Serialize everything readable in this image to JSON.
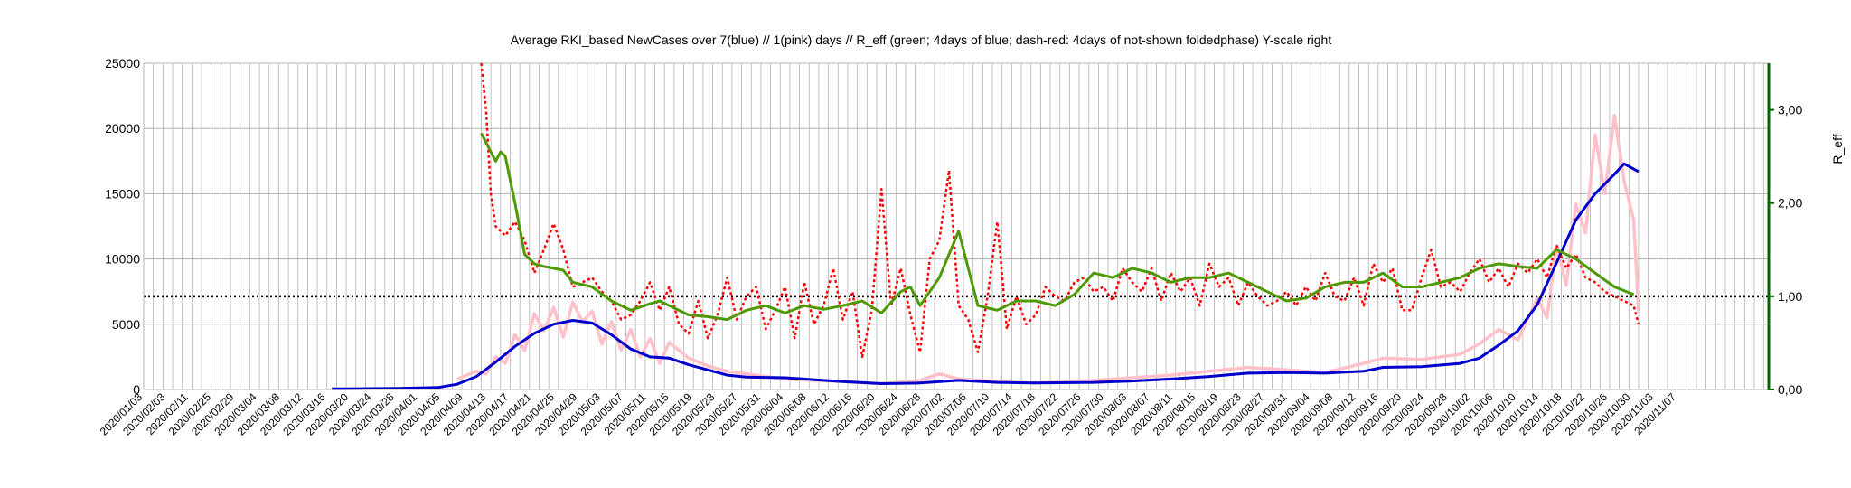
{
  "chart_data": {
    "type": "line",
    "title": "Average RKI_based NewCases over 7(blue) // 1(pink) days //  R_eff (green; 4days of blue; dash-red: 4days of not-shown foldedphase) Y-scale right",
    "xlabel": "",
    "ylabel": "",
    "y2label": "R_eff",
    "x_start": "2020/01/03",
    "x_end": "2020/12/05",
    "ylim": [
      0,
      25000
    ],
    "y2lim": [
      0,
      3.5
    ],
    "yticks": [
      "0",
      "5000",
      "10000",
      "15000",
      "20000",
      "25000"
    ],
    "y2ticks": [
      "0,00",
      "1,00",
      "2,00",
      "3,00"
    ],
    "y2tick_values": [
      0,
      1,
      2,
      3
    ],
    "xtick_labels": [
      "2020/01/03",
      "2020/02/03",
      "2020/02/11",
      "2020/02/25",
      "2020/02/29",
      "2020/03/04",
      "2020/03/08",
      "2020/03/12",
      "2020/03/16",
      "2020/03/20",
      "2020/03/24",
      "2020/03/28",
      "2020/04/01",
      "2020/04/05",
      "2020/04/09",
      "2020/04/13",
      "2020/04/17",
      "2020/04/21",
      "2020/04/25",
      "2020/04/29",
      "2020/05/03",
      "2020/05/07",
      "2020/05/11",
      "2020/05/15",
      "2020/05/19",
      "2020/05/23",
      "2020/05/27",
      "2020/05/31",
      "2020/06/04",
      "2020/06/08",
      "2020/06/12",
      "2020/06/16",
      "2020/06/20",
      "2020/06/24",
      "2020/06/28",
      "2020/07/02",
      "2020/07/06",
      "2020/07/10",
      "2020/07/14",
      "2020/07/18",
      "2020/07/22",
      "2020/07/26",
      "2020/07/30",
      "2020/08/03",
      "2020/08/07",
      "2020/08/11",
      "2020/08/15",
      "2020/08/19",
      "2020/08/23",
      "2020/08/27",
      "2020/08/31",
      "2020/09/04",
      "2020/09/08",
      "2020/09/12",
      "2020/09/16",
      "2020/09/20",
      "2020/09/24",
      "2020/09/28",
      "2020/10/02",
      "2020/10/06",
      "2020/10/10",
      "2020/10/14",
      "2020/10/18",
      "2020/10/22",
      "2020/10/26",
      "2020/10/30",
      "2020/11/03",
      "2020/11/07"
    ],
    "reference_line": {
      "axis": "y2",
      "value": 1.0,
      "style": "dotted",
      "color": "#000000"
    },
    "grid": true,
    "colors": {
      "avg7": "#0000cc",
      "daily": "#ffc0c8",
      "r_eff": "#4e9a06",
      "r_folded": "#ff0000",
      "y2axis": "#006600",
      "grid": "#b3b3b3"
    },
    "series": [
      {
        "axis": "y",
        "x": [
          "2020/02/11",
          "2020/02/25",
          "2020/03/04",
          "2020/03/08",
          "2020/03/12",
          "2020/03/16",
          "2020/03/20",
          "2020/03/24",
          "2020/03/28",
          "2020/04/01",
          "2020/04/05",
          "2020/04/09",
          "2020/04/13",
          "2020/04/17",
          "2020/04/21",
          "2020/04/25",
          "2020/04/29",
          "2020/05/03",
          "2020/05/07",
          "2020/05/15",
          "2020/05/27",
          "2020/06/04",
          "2020/06/12",
          "2020/06/20",
          "2020/06/28",
          "2020/07/06",
          "2020/07/18",
          "2020/07/26",
          "2020/08/03",
          "2020/08/11",
          "2020/08/19",
          "2020/08/27",
          "2020/09/04",
          "2020/09/12",
          "2020/09/16",
          "2020/09/24",
          "2020/10/02",
          "2020/10/06",
          "2020/10/10",
          "2020/10/14",
          "2020/10/18",
          "2020/10/22",
          "2020/10/26",
          "2020/10/30",
          "2020/11/03",
          "2020/11/05",
          "2020/11/08"
        ],
        "y": [
          50,
          80,
          150,
          400,
          1000,
          2100,
          3300,
          4300,
          5000,
          5300,
          5100,
          4200,
          3100,
          2500,
          2400,
          1900,
          1500,
          1100,
          950,
          900,
          600,
          450,
          500,
          700,
          550,
          500,
          550,
          650,
          800,
          1000,
          1250,
          1300,
          1250,
          1400,
          1700,
          1750,
          2000,
          2400,
          3400,
          4500,
          6500,
          9700,
          13000,
          15000,
          16500,
          17300,
          16700
        ]
      },
      {
        "axis": "y",
        "x": [
          "2020/03/08",
          "2020/03/12",
          "2020/03/14",
          "2020/03/16",
          "2020/03/18",
          "2020/03/20",
          "2020/03/22",
          "2020/03/24",
          "2020/03/26",
          "2020/03/28",
          "2020/03/30",
          "2020/04/01",
          "2020/04/03",
          "2020/04/05",
          "2020/04/07",
          "2020/04/09",
          "2020/04/11",
          "2020/04/13",
          "2020/04/15",
          "2020/04/17",
          "2020/04/19",
          "2020/04/21",
          "2020/04/25",
          "2020/04/29",
          "2020/05/03",
          "2020/05/07",
          "2020/05/15",
          "2020/05/27",
          "2020/06/04",
          "2020/06/12",
          "2020/06/16",
          "2020/06/20",
          "2020/06/28",
          "2020/07/06",
          "2020/07/18",
          "2020/07/26",
          "2020/08/03",
          "2020/08/11",
          "2020/08/19",
          "2020/08/27",
          "2020/09/04",
          "2020/09/12",
          "2020/09/16",
          "2020/09/24",
          "2020/10/02",
          "2020/10/06",
          "2020/10/10",
          "2020/10/14",
          "2020/10/18",
          "2020/10/20",
          "2020/10/22",
          "2020/10/24",
          "2020/10/26",
          "2020/10/28",
          "2020/10/30",
          "2020/11/01",
          "2020/11/03",
          "2020/11/05",
          "2020/11/07",
          "2020/11/08"
        ],
        "y": [
          800,
          1400,
          1200,
          2500,
          2000,
          4200,
          3000,
          5800,
          4500,
          6300,
          4000,
          6700,
          5200,
          6000,
          3500,
          5200,
          3000,
          4600,
          2500,
          3900,
          2000,
          3600,
          2400,
          1800,
          1400,
          1200,
          800,
          600,
          450,
          700,
          1200,
          800,
          600,
          500,
          700,
          900,
          1100,
          1400,
          1700,
          1500,
          1300,
          2000,
          2400,
          2300,
          2700,
          3500,
          4600,
          3800,
          7000,
          5500,
          11000,
          8000,
          14200,
          12000,
          19500,
          15000,
          21000,
          16000,
          13000,
          6000
        ]
      },
      {
        "axis": "y2",
        "x": [
          "2020/03/13",
          "2020/03/15",
          "2020/03/16",
          "2020/03/17",
          "2020/03/18",
          "2020/03/20",
          "2020/03/22",
          "2020/03/24",
          "2020/03/26",
          "2020/03/28",
          "2020/03/30",
          "2020/04/01",
          "2020/04/05",
          "2020/04/09",
          "2020/04/13",
          "2020/04/17",
          "2020/04/19",
          "2020/04/21",
          "2020/04/25",
          "2020/04/29",
          "2020/05/03",
          "2020/05/07",
          "2020/05/11",
          "2020/05/15",
          "2020/05/19",
          "2020/05/23",
          "2020/05/27",
          "2020/05/31",
          "2020/06/04",
          "2020/06/08",
          "2020/06/10",
          "2020/06/12",
          "2020/06/16",
          "2020/06/20",
          "2020/06/24",
          "2020/06/28",
          "2020/07/02",
          "2020/07/06",
          "2020/07/10",
          "2020/07/14",
          "2020/07/18",
          "2020/07/22",
          "2020/07/26",
          "2020/07/30",
          "2020/08/03",
          "2020/08/07",
          "2020/08/11",
          "2020/08/15",
          "2020/08/19",
          "2020/08/23",
          "2020/08/27",
          "2020/08/31",
          "2020/09/04",
          "2020/09/08",
          "2020/09/12",
          "2020/09/16",
          "2020/09/20",
          "2020/09/24",
          "2020/09/28",
          "2020/10/02",
          "2020/10/06",
          "2020/10/10",
          "2020/10/14",
          "2020/10/18",
          "2020/10/22",
          "2020/10/26",
          "2020/10/30",
          "2020/11/03",
          "2020/11/07"
        ],
        "y": [
          2.75,
          2.55,
          2.45,
          2.55,
          2.5,
          2.0,
          1.45,
          1.35,
          1.32,
          1.3,
          1.28,
          1.15,
          1.1,
          0.95,
          0.85,
          0.92,
          0.95,
          0.9,
          0.8,
          0.78,
          0.75,
          0.85,
          0.9,
          0.82,
          0.9,
          0.86,
          0.9,
          0.95,
          0.82,
          1.05,
          1.1,
          0.9,
          1.2,
          1.7,
          0.9,
          0.85,
          0.95,
          0.95,
          0.9,
          1.02,
          1.25,
          1.2,
          1.3,
          1.25,
          1.15,
          1.2,
          1.2,
          1.25,
          1.15,
          1.05,
          0.95,
          0.98,
          1.1,
          1.15,
          1.15,
          1.25,
          1.1,
          1.1,
          1.15,
          1.2,
          1.3,
          1.35,
          1.32,
          1.3,
          1.5,
          1.4,
          1.25,
          1.1,
          1.02
        ]
      },
      {
        "axis": "y2",
        "x": [
          "2020/03/13",
          "2020/03/14",
          "2020/03/15",
          "2020/03/16",
          "2020/03/18",
          "2020/03/20",
          "2020/03/22",
          "2020/03/24",
          "2020/03/26",
          "2020/03/28",
          "2020/03/30",
          "2020/04/01",
          "2020/04/03",
          "2020/04/05",
          "2020/04/07",
          "2020/04/09",
          "2020/04/11",
          "2020/04/13",
          "2020/04/15",
          "2020/04/17",
          "2020/04/19",
          "2020/04/21",
          "2020/04/23",
          "2020/04/25",
          "2020/04/27",
          "2020/04/29",
          "2020/05/01",
          "2020/05/03",
          "2020/05/05",
          "2020/05/07",
          "2020/05/09",
          "2020/05/11",
          "2020/05/13",
          "2020/05/15",
          "2020/05/17",
          "2020/05/19",
          "2020/05/21",
          "2020/05/23",
          "2020/05/25",
          "2020/05/27",
          "2020/05/29",
          "2020/05/31",
          "2020/06/02",
          "2020/06/04",
          "2020/06/06",
          "2020/06/08",
          "2020/06/10",
          "2020/06/12",
          "2020/06/14",
          "2020/06/16",
          "2020/06/18",
          "2020/06/20",
          "2020/06/22",
          "2020/06/24",
          "2020/06/26",
          "2020/06/28",
          "2020/06/30",
          "2020/07/02",
          "2020/07/04",
          "2020/07/06",
          "2020/07/08",
          "2020/07/10",
          "2020/07/12",
          "2020/07/14",
          "2020/07/16",
          "2020/07/18",
          "2020/07/20",
          "2020/07/22",
          "2020/07/24",
          "2020/07/26",
          "2020/07/28",
          "2020/07/30",
          "2020/08/01",
          "2020/08/03",
          "2020/08/05",
          "2020/08/07",
          "2020/08/09",
          "2020/08/11",
          "2020/08/13",
          "2020/08/15",
          "2020/08/17",
          "2020/08/19",
          "2020/08/21",
          "2020/08/23",
          "2020/08/25",
          "2020/08/27",
          "2020/08/29",
          "2020/08/31",
          "2020/09/02",
          "2020/09/04",
          "2020/09/06",
          "2020/09/08",
          "2020/09/10",
          "2020/09/12",
          "2020/09/14",
          "2020/09/16",
          "2020/09/18",
          "2020/09/20",
          "2020/09/22",
          "2020/09/24",
          "2020/09/26",
          "2020/09/28",
          "2020/09/30",
          "2020/10/02",
          "2020/10/04",
          "2020/10/06",
          "2020/10/08",
          "2020/10/10",
          "2020/10/12",
          "2020/10/14",
          "2020/10/16",
          "2020/10/18",
          "2020/10/20",
          "2020/10/22",
          "2020/10/24",
          "2020/10/26",
          "2020/10/28",
          "2020/10/30",
          "2020/11/01",
          "2020/11/03",
          "2020/11/05",
          "2020/11/07",
          "2020/11/08"
        ],
        "y": [
          3.5,
          3.0,
          2.1,
          1.75,
          1.65,
          1.8,
          1.6,
          1.25,
          1.5,
          1.78,
          1.5,
          1.1,
          1.15,
          1.2,
          1.05,
          0.95,
          0.75,
          0.8,
          0.95,
          1.15,
          0.85,
          1.1,
          0.7,
          0.6,
          0.95,
          0.55,
          0.8,
          1.2,
          0.75,
          1.0,
          1.1,
          0.65,
          0.85,
          1.1,
          0.55,
          1.15,
          0.7,
          0.9,
          1.3,
          0.75,
          1.05,
          0.35,
          0.85,
          2.15,
          0.9,
          1.3,
          0.8,
          0.4,
          1.4,
          1.6,
          2.35,
          0.9,
          0.75,
          0.4,
          1.0,
          1.8,
          0.65,
          1.0,
          0.7,
          0.8,
          1.1,
          1.0,
          0.95,
          1.15,
          1.2,
          1.05,
          1.1,
          0.95,
          1.3,
          1.15,
          1.05,
          1.3,
          0.95,
          1.25,
          1.05,
          1.2,
          0.9,
          1.35,
          1.1,
          1.2,
          0.9,
          1.15,
          1.0,
          0.9,
          0.95,
          1.05,
          0.9,
          1.1,
          0.95,
          1.25,
          1.0,
          0.95,
          1.2,
          0.9,
          1.35,
          1.15,
          1.3,
          0.85,
          0.85,
          1.2,
          1.5,
          1.1,
          1.15,
          1.05,
          1.25,
          1.4,
          1.15,
          1.3,
          1.1,
          1.35,
          1.25,
          1.4,
          1.2,
          1.55,
          1.3,
          1.45,
          1.2,
          1.15,
          1.05,
          1.0,
          0.95,
          0.9,
          0.7
        ]
      }
    ]
  }
}
